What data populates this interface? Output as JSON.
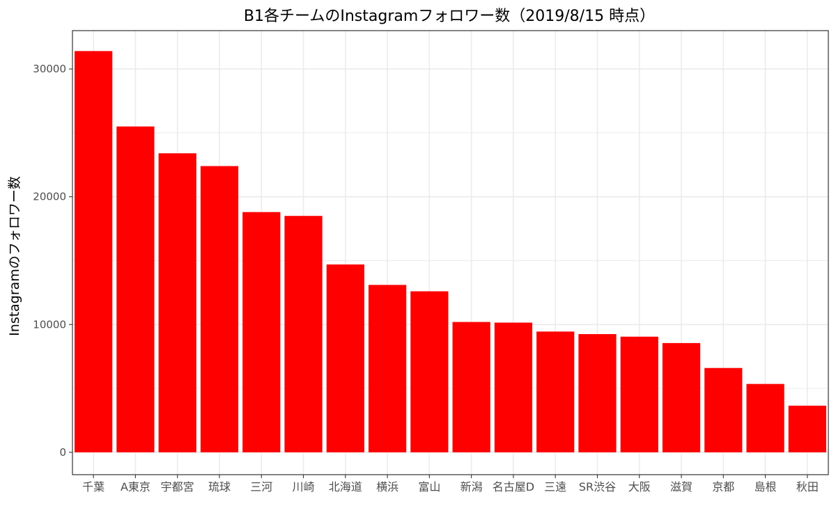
{
  "chart_data": {
    "type": "bar",
    "title": "B1各チームのInstagramフォロワー数（2019/8/15 時点）",
    "xlabel": "",
    "ylabel": "Instagramのフォロワー数",
    "categories": [
      "千葉",
      "A東京",
      "宇都宮",
      "琉球",
      "三河",
      "川崎",
      "北海道",
      "横浜",
      "富山",
      "新潟",
      "名古屋D",
      "三遠",
      "SR渋谷",
      "大阪",
      "滋賀",
      "京都",
      "島根",
      "秋田"
    ],
    "values": [
      31400,
      25500,
      23400,
      22400,
      18800,
      18500,
      14700,
      13100,
      12600,
      10200,
      10150,
      9450,
      9250,
      9050,
      8550,
      6600,
      5350,
      3650
    ],
    "ylim": [
      -1750,
      33000
    ],
    "yticks": [
      0,
      10000,
      20000,
      30000
    ],
    "grid": true,
    "legend": "none",
    "bar_color": "#ff0000",
    "grid_color": "#ebebeb",
    "border_color": "#333333"
  }
}
